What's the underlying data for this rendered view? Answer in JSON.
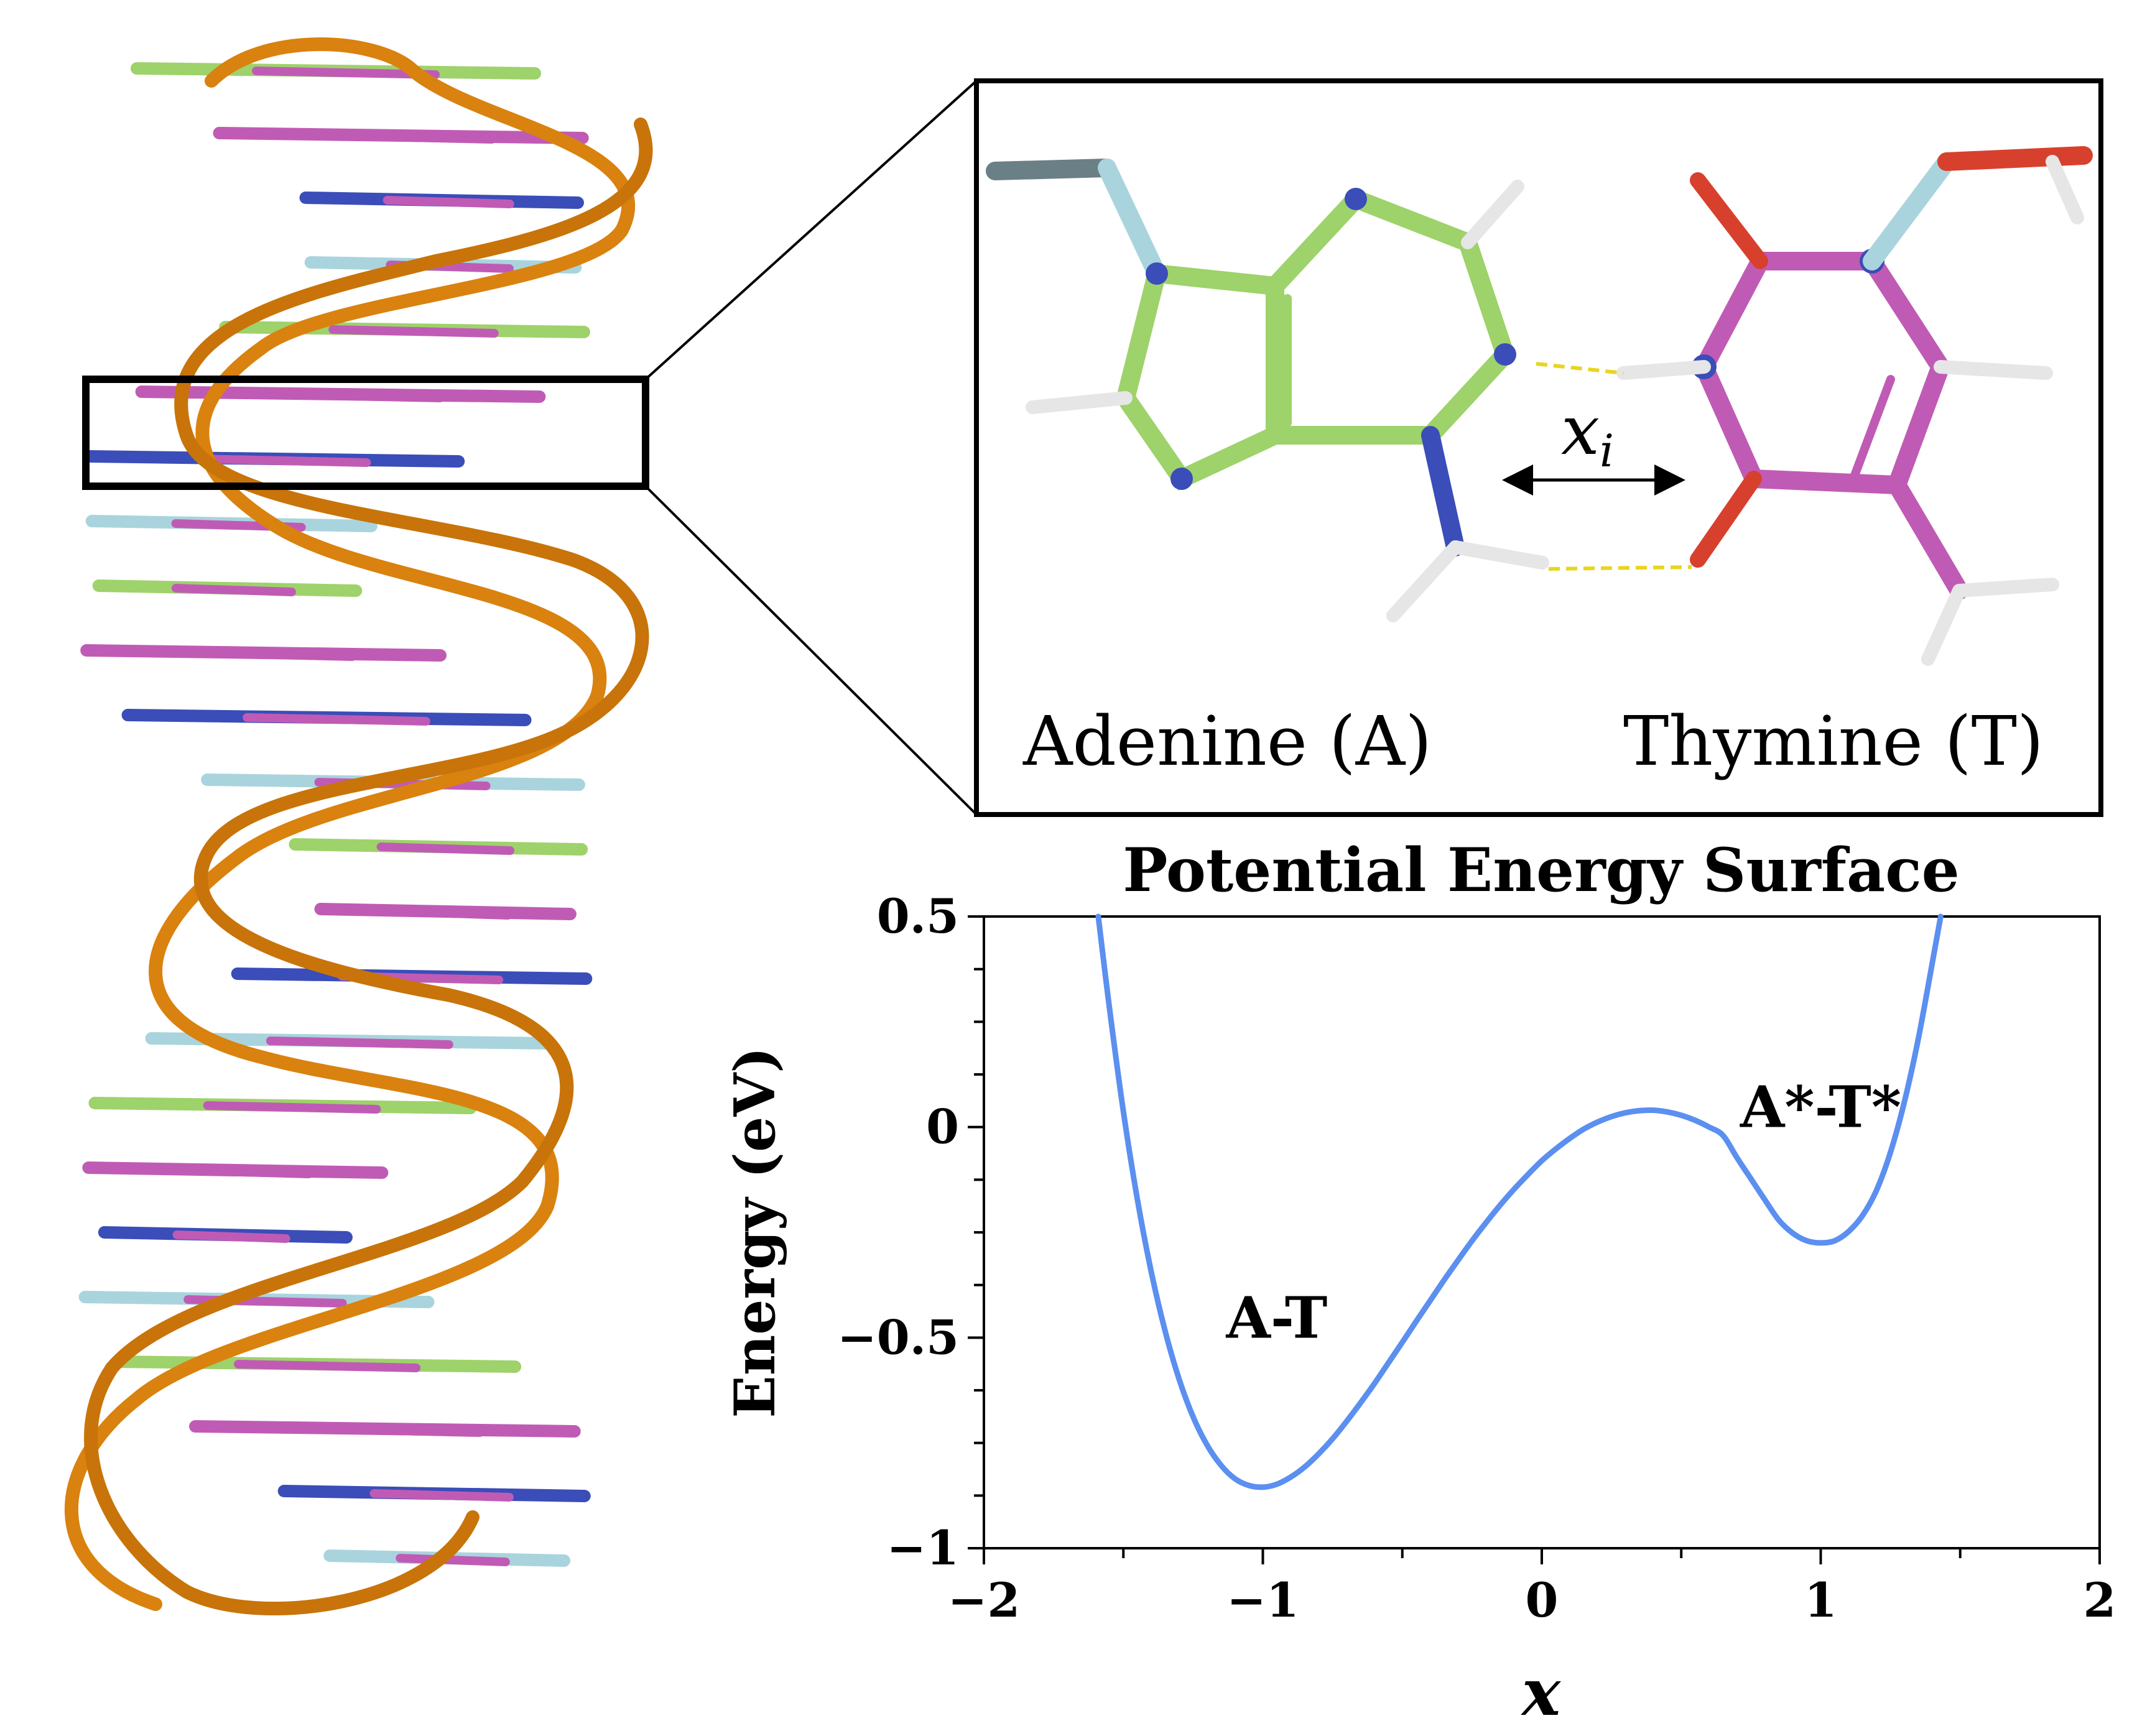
{
  "inset": {
    "left_label": "Adenine (A)",
    "right_label": "Thymine (T)",
    "distance_label": "x",
    "distance_subscript": "i"
  },
  "colors": {
    "curve": "#5b8ff0",
    "backbone": "#d9820f",
    "carbon_A": "#9ed26a",
    "carbon_T": "#c05bb5",
    "nitrogen": "#3a4db8",
    "oxygen": "#d8402e",
    "hydrogen": "#e6e6e6",
    "sugar": "#a9d4dd"
  },
  "chart_data": {
    "type": "line",
    "title": "Potential Energy Surface",
    "xlabel": "x",
    "ylabel": "Energy (eV)",
    "xlim": [
      -2,
      2
    ],
    "ylim": [
      -1,
      0.5
    ],
    "x_ticks": [
      -2,
      -1,
      0,
      1,
      2
    ],
    "x_tick_labels": [
      "−2",
      "−1",
      "0",
      "1",
      "2"
    ],
    "y_ticks": [
      -1,
      -0.5,
      0,
      0.5
    ],
    "y_tick_labels": [
      "−1",
      "−0.5",
      "0",
      "0.5"
    ],
    "grid": false,
    "series": [
      {
        "points": [
          [
            -1.59,
            0.5
          ],
          [
            -1.55,
            0.283
          ],
          [
            -1.5,
            0.037
          ],
          [
            -1.45,
            -0.171
          ],
          [
            -1.4,
            -0.344
          ],
          [
            -1.35,
            -0.485
          ],
          [
            -1.3,
            -0.599
          ],
          [
            -1.25,
            -0.688
          ],
          [
            -1.2,
            -0.755
          ],
          [
            -1.15,
            -0.803
          ],
          [
            -1.1,
            -0.835
          ],
          [
            -1.05,
            -0.851
          ],
          [
            -1.0,
            -0.855
          ],
          [
            -0.95,
            -0.848
          ],
          [
            -0.9,
            -0.831
          ],
          [
            -0.85,
            -0.807
          ],
          [
            -0.8,
            -0.776
          ],
          [
            -0.75,
            -0.74
          ],
          [
            -0.7,
            -0.699
          ],
          [
            -0.65,
            -0.655
          ],
          [
            -0.6,
            -0.609
          ],
          [
            -0.55,
            -0.56
          ],
          [
            -0.5,
            -0.511
          ],
          [
            -0.45,
            -0.461
          ],
          [
            -0.4,
            -0.412
          ],
          [
            -0.35,
            -0.363
          ],
          [
            -0.3,
            -0.316
          ],
          [
            -0.25,
            -0.27
          ],
          [
            -0.2,
            -0.227
          ],
          [
            -0.15,
            -0.186
          ],
          [
            -0.1,
            -0.148
          ],
          [
            -0.05,
            -0.113
          ],
          [
            0.0,
            -0.08
          ],
          [
            0.05,
            -0.052
          ],
          [
            0.1,
            -0.027
          ],
          [
            0.15,
            -0.005
          ],
          [
            0.2,
            0.012
          ],
          [
            0.25,
            0.025
          ],
          [
            0.3,
            0.034
          ],
          [
            0.35,
            0.039
          ],
          [
            0.4,
            0.04
          ],
          [
            0.45,
            0.036
          ],
          [
            0.5,
            0.028
          ],
          [
            0.55,
            0.016
          ],
          [
            0.6,
            0.0
          ],
          [
            0.65,
            -0.02
          ],
          [
            0.7,
            -0.073
          ],
          [
            0.75,
            -0.123
          ],
          [
            0.8,
            -0.173
          ],
          [
            0.85,
            -0.221
          ],
          [
            0.9,
            -0.252
          ],
          [
            0.95,
            -0.27
          ],
          [
            1.0,
            -0.275
          ],
          [
            1.05,
            -0.27
          ],
          [
            1.1,
            -0.248
          ],
          [
            1.15,
            -0.21
          ],
          [
            1.2,
            -0.15
          ],
          [
            1.25,
            -0.06
          ],
          [
            1.3,
            0.06
          ],
          [
            1.35,
            0.21
          ],
          [
            1.4,
            0.39
          ],
          [
            1.43,
            0.5
          ]
        ]
      }
    ],
    "annotations": [
      {
        "text": "A-T",
        "x": -0.95,
        "y": -0.5
      },
      {
        "text": "A*-T*",
        "x": 1.0,
        "y": 0.0
      }
    ]
  }
}
